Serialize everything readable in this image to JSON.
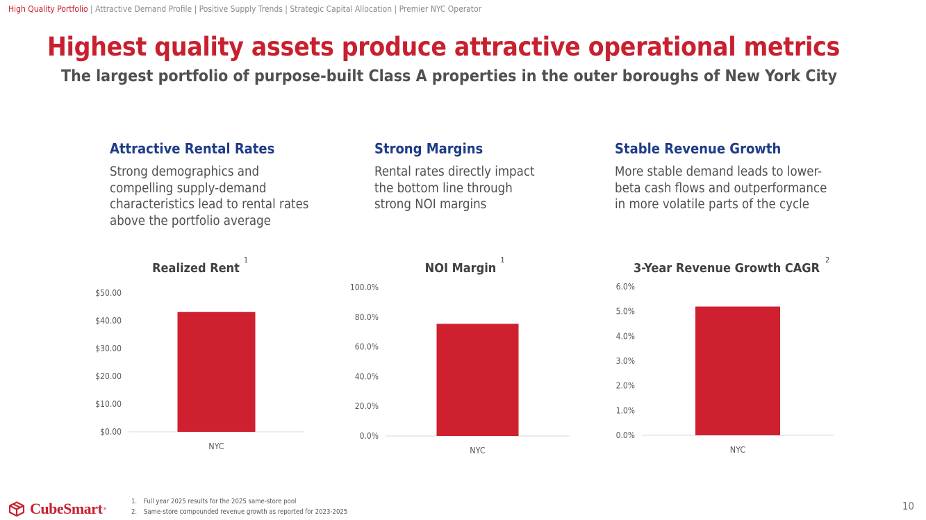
{
  "nav": {
    "active": "High Quality Portfolio",
    "separator": " | ",
    "items": [
      "Attractive Demand Profile",
      "Positive Supply Trends",
      "Strategic Capital Allocation",
      "Premier NYC Operator"
    ]
  },
  "title": "Highest quality assets produce attractive operational metrics",
  "subtitle": "The largest portfolio of purpose-built Class A properties in the outer boroughs of New York City",
  "columns": [
    {
      "heading": "Attractive Rental Rates",
      "body": "Strong demographics and compelling supply-demand characteristics lead to rental rates above the portfolio average"
    },
    {
      "heading": "Strong Margins",
      "body": "Rental rates directly impact the bottom line through strong NOI margins"
    },
    {
      "heading": "Stable Revenue Growth",
      "body": "More stable demand leads to lower-beta cash flows and outperformance in more volatile parts of the cycle"
    }
  ],
  "chart_data": [
    {
      "type": "bar",
      "title": "Realized Rent",
      "footnote_ref": "1",
      "categories": [
        "NYC"
      ],
      "values": [
        43.2
      ],
      "ylim": [
        0,
        50
      ],
      "yticks": [
        "$0.00",
        "$10.00",
        "$20.00",
        "$30.00",
        "$40.00",
        "$50.00"
      ],
      "grid": false,
      "bar_color": "#cf2030"
    },
    {
      "type": "bar",
      "title": "NOI Margin",
      "footnote_ref": "1",
      "categories": [
        "NYC"
      ],
      "values": [
        75.5
      ],
      "ylim": [
        0,
        100
      ],
      "yticks": [
        "0.0%",
        "20.0%",
        "40.0%",
        "60.0%",
        "80.0%",
        "100.0%"
      ],
      "grid": false,
      "bar_color": "#cf2030"
    },
    {
      "type": "bar",
      "title": "3-Year Revenue Growth CAGR",
      "footnote_ref": "2",
      "categories": [
        "NYC"
      ],
      "values": [
        5.2
      ],
      "ylim": [
        0,
        6
      ],
      "yticks": [
        "0.0%",
        "1.0%",
        "2.0%",
        "3.0%",
        "4.0%",
        "5.0%",
        "6.0%"
      ],
      "grid": false,
      "bar_color": "#cf2030"
    }
  ],
  "footnotes": [
    {
      "num": "1.",
      "text": "Full year 2025 results for the 2025 same-store pool"
    },
    {
      "num": "2.",
      "text": "Same-store compounded revenue growth as reported for 2023-2025"
    }
  ],
  "logo": {
    "text": "CubeSmart",
    "tm": "®",
    "icon": "cube-logo-icon"
  },
  "page_number": "10",
  "colors": {
    "accent": "#c8202f",
    "heading": "#1f3c88",
    "bar": "#cf2030"
  }
}
